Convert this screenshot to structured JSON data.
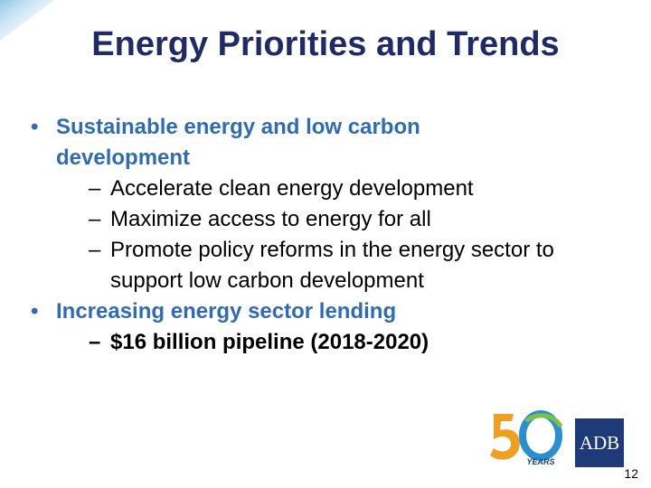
{
  "header": {
    "title": "Energy Priorities and Trends"
  },
  "bullets": [
    {
      "text": "Sustainable energy and low carbon development",
      "subitems": [
        "Accelerate clean energy development",
        "Maximize access to energy for all",
        "Promote policy reforms in the energy sector to support low carbon development"
      ]
    },
    {
      "text": "Increasing energy sector lending",
      "subitems": [
        "$16 billion pipeline (2018-2020)"
      ]
    }
  ],
  "logos": {
    "anniversary": "YEARS",
    "adb": "ADB"
  },
  "footer": {
    "page_number": "12"
  }
}
